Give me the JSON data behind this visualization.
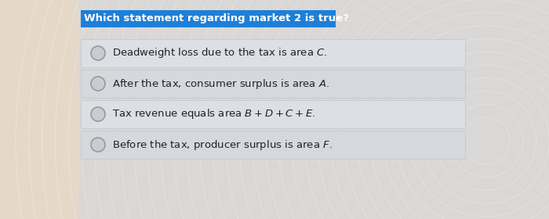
{
  "title": "Which statement regarding market 2 is true?",
  "title_bg_color": "#1E7FD8",
  "title_text_color": "#FFFFFF",
  "title_fontsize": 9.5,
  "background_color_left": "#E8DDD0",
  "background_color_right": "#D8DCDF",
  "option_bg_color": "#D8DCE0",
  "option_bg_color_alt": "#CDD2D7",
  "options": [
    "Deadweight loss due to the tax is area $C$.",
    "After the tax, consumer surplus is area $A$.",
    "Tax revenue equals area $B + D + C + E$.",
    "Before the tax, producer surplus is area $F$."
  ],
  "option_fontsize": 9.5,
  "option_text_color": "#222222",
  "circle_edge_color": "#999999",
  "circle_inner_color": "#C8CDD3",
  "figsize": [
    7.0,
    2.8
  ],
  "dpi": 100
}
